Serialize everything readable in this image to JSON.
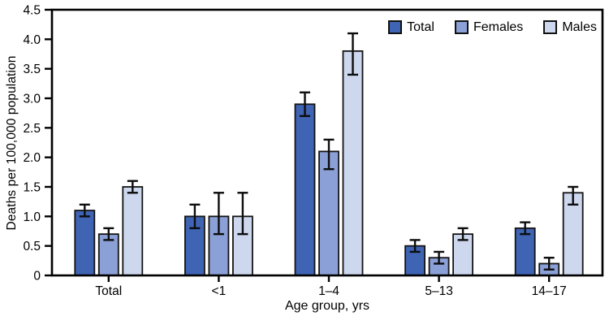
{
  "chart_data": {
    "type": "bar",
    "title": "",
    "xlabel": "Age group, yrs",
    "ylabel": "Deaths per 100,000 population",
    "categories": [
      "Total",
      "<1",
      "1–4",
      "5–13",
      "14–17"
    ],
    "series": [
      {
        "name": "Total",
        "color": "#3F64B4",
        "values": [
          1.1,
          1.0,
          2.9,
          0.5,
          0.8
        ],
        "error_low": [
          1.0,
          0.8,
          2.7,
          0.4,
          0.7
        ],
        "error_high": [
          1.2,
          1.2,
          3.1,
          0.6,
          0.9
        ]
      },
      {
        "name": "Females",
        "color": "#8BA0D6",
        "values": [
          0.7,
          1.0,
          2.1,
          0.3,
          0.2
        ],
        "error_low": [
          0.6,
          0.7,
          1.8,
          0.2,
          0.1
        ],
        "error_high": [
          0.8,
          1.4,
          2.3,
          0.4,
          0.3
        ]
      },
      {
        "name": "Males",
        "color": "#CDD7EE",
        "values": [
          1.5,
          1.0,
          3.8,
          0.7,
          1.4
        ],
        "error_low": [
          1.4,
          0.7,
          3.4,
          0.6,
          1.2
        ],
        "error_high": [
          1.6,
          1.4,
          4.1,
          0.8,
          1.5
        ]
      }
    ],
    "ylim": [
      0,
      4.5
    ],
    "ytick_step": 0.5,
    "ytick_labels": [
      "0",
      "0.5",
      "1.0",
      "1.5",
      "2.0",
      "2.5",
      "3.0",
      "3.5",
      "4.0",
      "4.5"
    ],
    "legend_position": "top-right",
    "grid": false,
    "error_bars": true,
    "axis_color": "#000000",
    "bar_border_color": "#141414",
    "background": "#FFFFFF"
  }
}
